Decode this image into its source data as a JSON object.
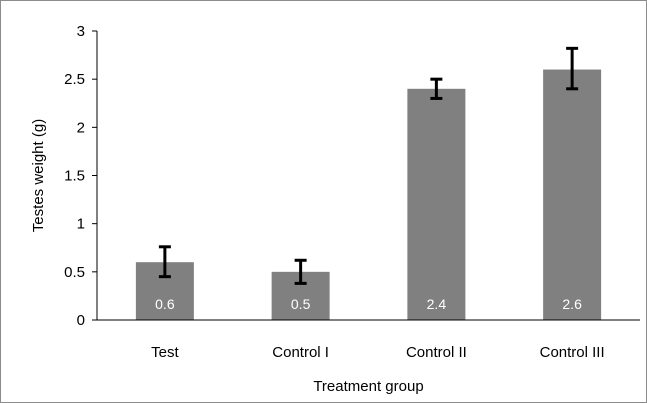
{
  "chart_data": {
    "type": "bar",
    "categories": [
      "Test",
      "Control I",
      "Control II",
      "Control III"
    ],
    "values": [
      0.6,
      0.5,
      2.4,
      2.6
    ],
    "data_labels": [
      "0.6",
      "0.5",
      "2.4",
      "2.6"
    ],
    "error_bars": [
      {
        "low": 0.45,
        "high": 0.76
      },
      {
        "low": 0.38,
        "high": 0.62
      },
      {
        "low": 2.3,
        "high": 2.5
      },
      {
        "low": 2.4,
        "high": 2.82
      }
    ],
    "xlabel": "Treatment group",
    "ylabel": "Testes weight (g)",
    "ylim": [
      0,
      3
    ],
    "yticks": [
      0,
      0.5,
      1,
      1.5,
      2,
      2.5,
      3
    ],
    "ytick_labels": [
      "0",
      "0.5",
      "1",
      "1.5",
      "2",
      "2.5",
      "3"
    ],
    "grid": false,
    "colors": {
      "bar": "#808080",
      "error_bar": "#000000",
      "axis": "#000000",
      "data_label": "#ffffff"
    }
  }
}
